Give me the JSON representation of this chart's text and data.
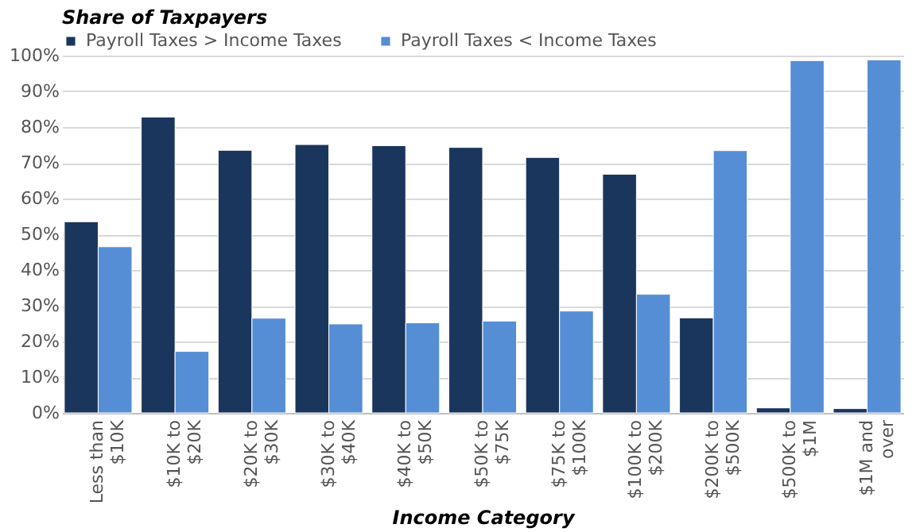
{
  "chart_data": {
    "type": "bar",
    "title": "Share of Taxpayers",
    "xlabel": "Income Category",
    "categories": [
      "Less than\n$10K",
      "$10K to\n$20K",
      "$20K to\n$30K",
      "$30K to\n$40K",
      "$40K to\n$50K",
      "$50K to\n$75K",
      "$75K to\n$100K",
      "$100K to\n$200K",
      "$200K to\n$500K",
      "$500K to\n$1M",
      "$1M and\nover"
    ],
    "series": [
      {
        "name": "Payroll Taxes > Income Taxes",
        "color": "#1b365d",
        "values": [
          53.5,
          82.8,
          73.5,
          75.1,
          74.8,
          74.3,
          71.5,
          66.8,
          26.6,
          1.4,
          1.2
        ]
      },
      {
        "name": "Payroll Taxes < Income Taxes",
        "color": "#558ed5",
        "values": [
          46.5,
          17.2,
          26.5,
          24.9,
          25.2,
          25.7,
          28.5,
          33.2,
          73.4,
          98.6,
          98.8
        ]
      }
    ],
    "ylim": [
      0,
      100
    ],
    "yticks": [
      {
        "value": 0,
        "label": "0%"
      },
      {
        "value": 10,
        "label": "10%"
      },
      {
        "value": 20,
        "label": "20%"
      },
      {
        "value": 30,
        "label": "30%"
      },
      {
        "value": 40,
        "label": "40%"
      },
      {
        "value": 50,
        "label": "50%"
      },
      {
        "value": 60,
        "label": "60%"
      },
      {
        "value": 70,
        "label": "70%"
      },
      {
        "value": 80,
        "label": "80%"
      },
      {
        "value": 90,
        "label": "90%"
      },
      {
        "value": 100,
        "label": "100%"
      }
    ],
    "grid": "y",
    "legend": "top"
  }
}
